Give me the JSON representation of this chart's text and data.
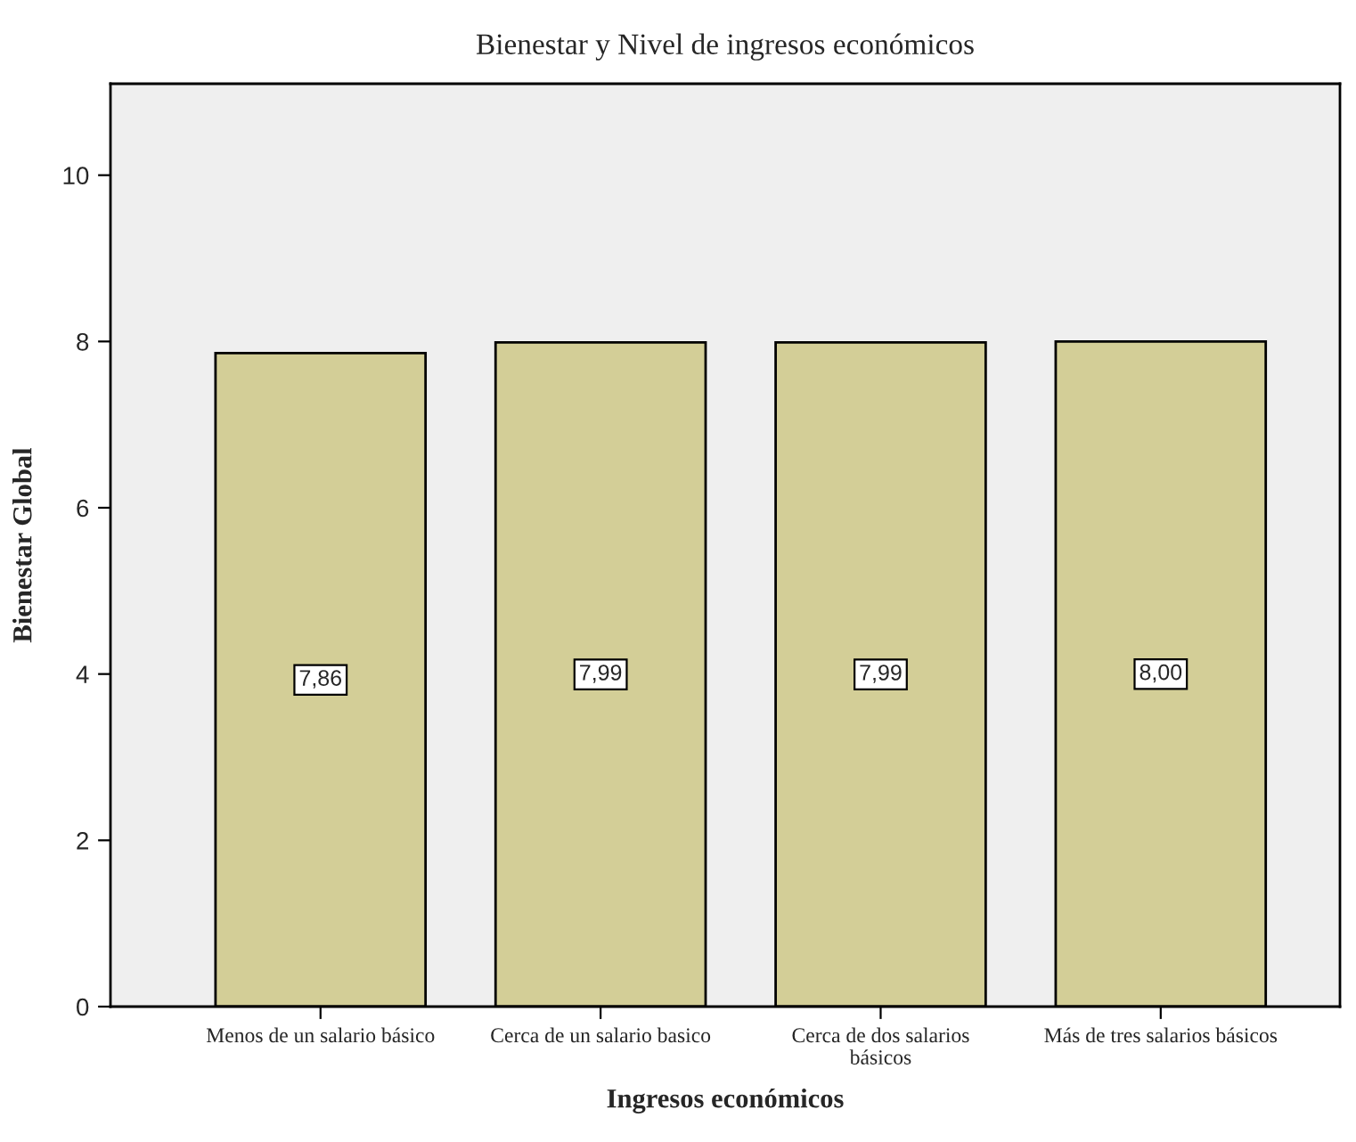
{
  "chart_data": {
    "type": "bar",
    "title": "Bienestar y Nivel de ingresos económicos",
    "xlabel": "Ingresos económicos",
    "ylabel": "Bienestar Global",
    "categories": [
      "Menos de un salario básico",
      "Cerca de un salario basico",
      "Cerca de dos salarios\nbásicos",
      "Más de tres salarios básicos"
    ],
    "values": [
      7.86,
      7.99,
      7.99,
      8.0
    ],
    "value_labels": [
      "7,86",
      "7,99",
      "7,99",
      "8,00"
    ],
    "color": "#d3ce97",
    "ylim": [
      0,
      11.1
    ],
    "yticks": [
      0,
      2,
      4,
      6,
      8,
      10
    ],
    "grid": false,
    "legend": false
  }
}
